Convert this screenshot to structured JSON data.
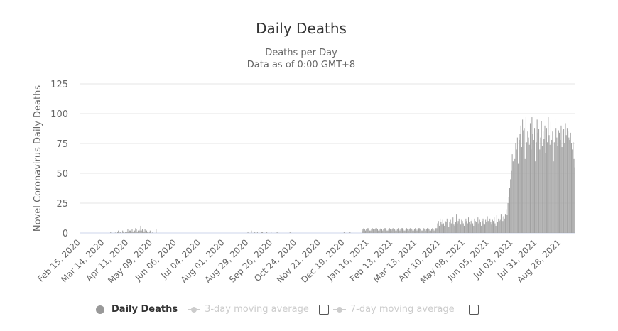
{
  "title": "Daily Deaths",
  "subtitle": "Deaths per Day",
  "subtitle2": "Data as of 0:00 GMT+8",
  "legend": {
    "daily": "Daily Deaths",
    "avg3": "3-day moving average",
    "avg7": "7-day moving average"
  },
  "chart_data": {
    "type": "bar",
    "title": "Daily Deaths",
    "ylabel": "Novel Coronavirus Daily Deaths",
    "xlabel": "",
    "ylim": [
      0,
      125
    ],
    "yticks": [
      0,
      25,
      50,
      75,
      100,
      125
    ],
    "start_date": "2020-02-15",
    "x_tick_labels": [
      "Feb 15, 2020",
      "Mar 14, 2020",
      "Apr 11, 2020",
      "May 09, 2020",
      "Jun 06, 2020",
      "Jul 04, 2020",
      "Aug 01, 2020",
      "Aug 29, 2020",
      "Sep 26, 2020",
      "Oct 24, 2020",
      "Nov 21, 2020",
      "Dec 19, 2020",
      "Jan 16, 2021",
      "Feb 13, 2021",
      "Mar 13, 2021",
      "Apr 10, 2021",
      "May 08, 2021",
      "Jun 05, 2021",
      "Jul 03, 2021",
      "Jul 31, 2021",
      "Aug 28, 2021"
    ],
    "x_tick_interval_days": 28,
    "bar_color": "#a0a0a0",
    "grid": true,
    "legend_position": "bottom",
    "values": [
      0,
      0,
      0,
      0,
      0,
      0,
      0,
      0,
      0,
      0,
      0,
      0,
      0,
      0,
      0,
      0,
      0,
      0,
      0,
      0,
      0,
      0,
      0,
      0,
      0,
      0,
      0,
      0,
      0,
      0,
      0,
      0,
      0,
      0,
      0,
      1,
      0,
      0,
      0,
      1,
      0,
      1,
      0,
      1,
      2,
      0,
      1,
      1,
      0,
      2,
      1,
      0,
      1,
      2,
      1,
      3,
      1,
      2,
      2,
      1,
      3,
      1,
      2,
      2,
      4,
      3,
      1,
      2,
      3,
      2,
      6,
      2,
      3,
      2,
      1,
      3,
      2,
      2,
      1,
      0,
      1,
      2,
      1,
      0,
      1,
      0,
      0,
      0,
      3,
      0,
      0,
      0,
      0,
      0,
      0,
      0,
      0,
      0,
      0,
      0,
      0,
      0,
      0,
      0,
      0,
      0,
      0,
      0,
      0,
      0,
      0,
      0,
      0,
      0,
      0,
      0,
      0,
      0,
      0,
      0,
      0,
      0,
      0,
      0,
      0,
      0,
      0,
      0,
      0,
      0,
      0,
      0,
      0,
      0,
      0,
      0,
      0,
      0,
      0,
      0,
      0,
      0,
      0,
      0,
      0,
      0,
      0,
      0,
      0,
      0,
      0,
      0,
      0,
      0,
      0,
      0,
      0,
      0,
      0,
      0,
      0,
      0,
      0,
      0,
      0,
      0,
      0,
      0,
      0,
      0,
      0,
      0,
      0,
      0,
      0,
      0,
      0,
      0,
      0,
      0,
      0,
      0,
      0,
      0,
      0,
      0,
      0,
      0,
      0,
      0,
      0,
      0,
      0,
      0,
      0,
      1,
      0,
      0,
      0,
      2,
      0,
      0,
      0,
      1,
      0,
      0,
      1,
      0,
      0,
      0,
      0,
      1,
      1,
      0,
      0,
      0,
      0,
      1,
      0,
      0,
      0,
      0,
      1,
      0,
      0,
      0,
      0,
      0,
      0,
      1,
      0,
      0,
      0,
      0,
      0,
      0,
      0,
      0,
      0,
      0,
      0,
      0,
      0,
      0,
      1,
      0,
      0,
      0,
      0,
      0,
      0,
      0,
      0,
      0,
      0,
      0,
      0,
      0,
      0,
      0,
      0,
      0,
      0,
      0,
      0,
      0,
      0,
      0,
      0,
      0,
      0,
      0,
      0,
      0,
      0,
      0,
      0,
      0,
      0,
      0,
      0,
      0,
      0,
      0,
      0,
      0,
      0,
      0,
      0,
      0,
      0,
      0,
      0,
      0,
      0,
      0,
      0,
      0,
      0,
      0,
      0,
      0,
      0,
      0,
      0,
      0,
      0,
      1,
      0,
      0,
      0,
      0,
      0,
      0,
      1,
      0,
      0,
      0,
      0,
      0,
      0,
      0,
      0,
      0,
      0,
      0,
      0,
      0,
      2,
      3,
      4,
      3,
      2,
      3,
      4,
      4,
      3,
      2,
      2,
      3,
      4,
      3,
      2,
      3,
      4,
      4,
      3,
      2,
      2,
      3,
      4,
      3,
      2,
      3,
      4,
      4,
      3,
      2,
      2,
      3,
      4,
      3,
      2,
      3,
      4,
      4,
      3,
      2,
      2,
      3,
      4,
      3,
      2,
      3,
      4,
      4,
      3,
      2,
      2,
      3,
      4,
      3,
      2,
      3,
      4,
      4,
      3,
      2,
      2,
      3,
      4,
      3,
      2,
      3,
      4,
      4,
      3,
      2,
      2,
      3,
      4,
      3,
      2,
      3,
      4,
      4,
      3,
      2,
      2,
      3,
      4,
      3,
      2,
      3,
      4,
      4,
      8,
      10,
      6,
      12,
      9,
      7,
      11,
      8,
      6,
      10,
      9,
      12,
      7,
      5,
      9,
      11,
      8,
      10,
      13,
      7,
      6,
      9,
      16,
      8,
      10,
      12,
      9,
      7,
      11,
      10,
      8,
      6,
      9,
      12,
      10,
      8,
      13,
      9,
      7,
      10,
      11,
      8,
      6,
      12,
      10,
      9,
      7,
      13,
      8,
      11,
      9,
      6,
      10,
      12,
      8,
      7,
      11,
      9,
      14,
      10,
      8,
      12,
      9,
      7,
      11,
      10,
      13,
      8,
      6,
      15,
      9,
      12,
      10,
      11,
      16,
      13,
      10,
      14,
      12,
      16,
      20,
      15,
      25,
      30,
      38,
      45,
      52,
      66,
      60,
      55,
      62,
      75,
      70,
      80,
      58,
      78,
      83,
      90,
      72,
      95,
      86,
      88,
      62,
      97,
      76,
      85,
      80,
      74,
      92,
      70,
      97,
      83,
      78,
      88,
      60,
      76,
      95,
      84,
      87,
      70,
      80,
      94,
      73,
      85,
      79,
      90,
      67,
      88,
      76,
      97,
      82,
      74,
      93,
      78,
      85,
      60,
      76,
      95,
      88,
      80,
      73,
      86,
      84,
      78,
      90,
      72,
      86,
      87,
      75,
      92,
      82,
      88,
      85,
      80,
      78,
      84,
      75,
      70,
      76,
      62,
      55
    ]
  }
}
